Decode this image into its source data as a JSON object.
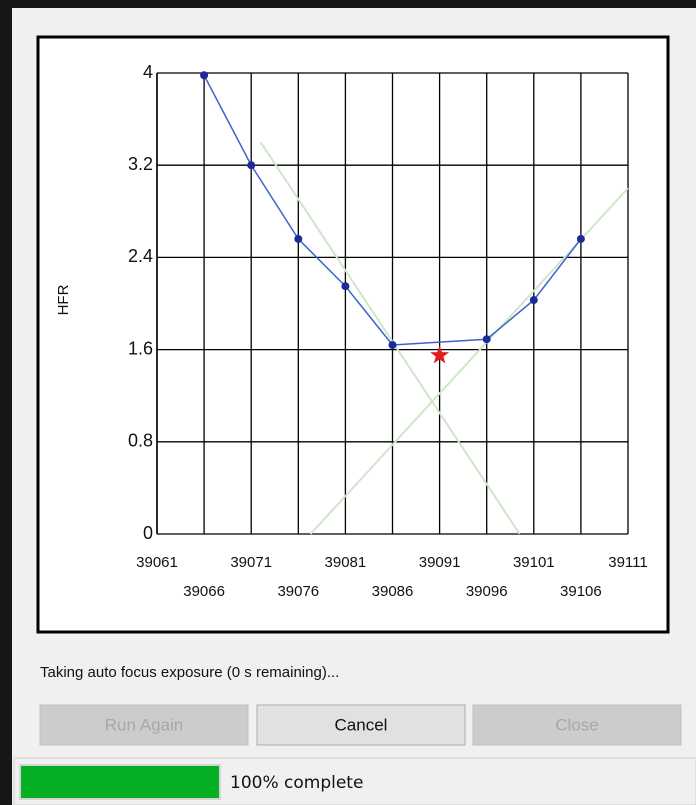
{
  "chart_data": {
    "type": "line",
    "y_label": "HFR",
    "x": [
      39066,
      39071,
      39076,
      39081,
      39086,
      39096,
      39101,
      39106
    ],
    "series": [
      {
        "color": "#1f2a9a",
        "values": [
          3.98,
          3.2,
          2.56,
          2.15,
          1.64,
          1.69,
          2.03,
          2.56
        ]
      }
    ],
    "best_focus": {
      "x": 39091,
      "y": 1.55,
      "color": "#e02020"
    },
    "trend_lines": [
      {
        "x": [
          39072,
          39099.5
        ],
        "values": [
          3.4,
          0
        ],
        "color": "#cfe6c8"
      },
      {
        "x": [
          39077.3,
          39111
        ],
        "values": [
          0,
          3.0
        ],
        "color": "#cfe6c8"
      }
    ],
    "xlim": [
      39061,
      39111
    ],
    "xticks": [
      39061,
      39066,
      39071,
      39076,
      39081,
      39086,
      39091,
      39096,
      39101,
      39106,
      39111
    ],
    "ylim": [
      0,
      4
    ],
    "yticks": [
      0,
      0.8,
      1.6,
      2.4,
      3.2,
      4
    ],
    "grid": true
  },
  "status": "Taking auto focus exposure (0 s remaining)...",
  "buttons": [
    {
      "label": "Run Again",
      "enabled": false
    },
    {
      "label": "Cancel",
      "enabled": true
    },
    {
      "label": "Close",
      "enabled": false
    }
  ],
  "progress": {
    "value": 100,
    "label": "100% complete"
  }
}
